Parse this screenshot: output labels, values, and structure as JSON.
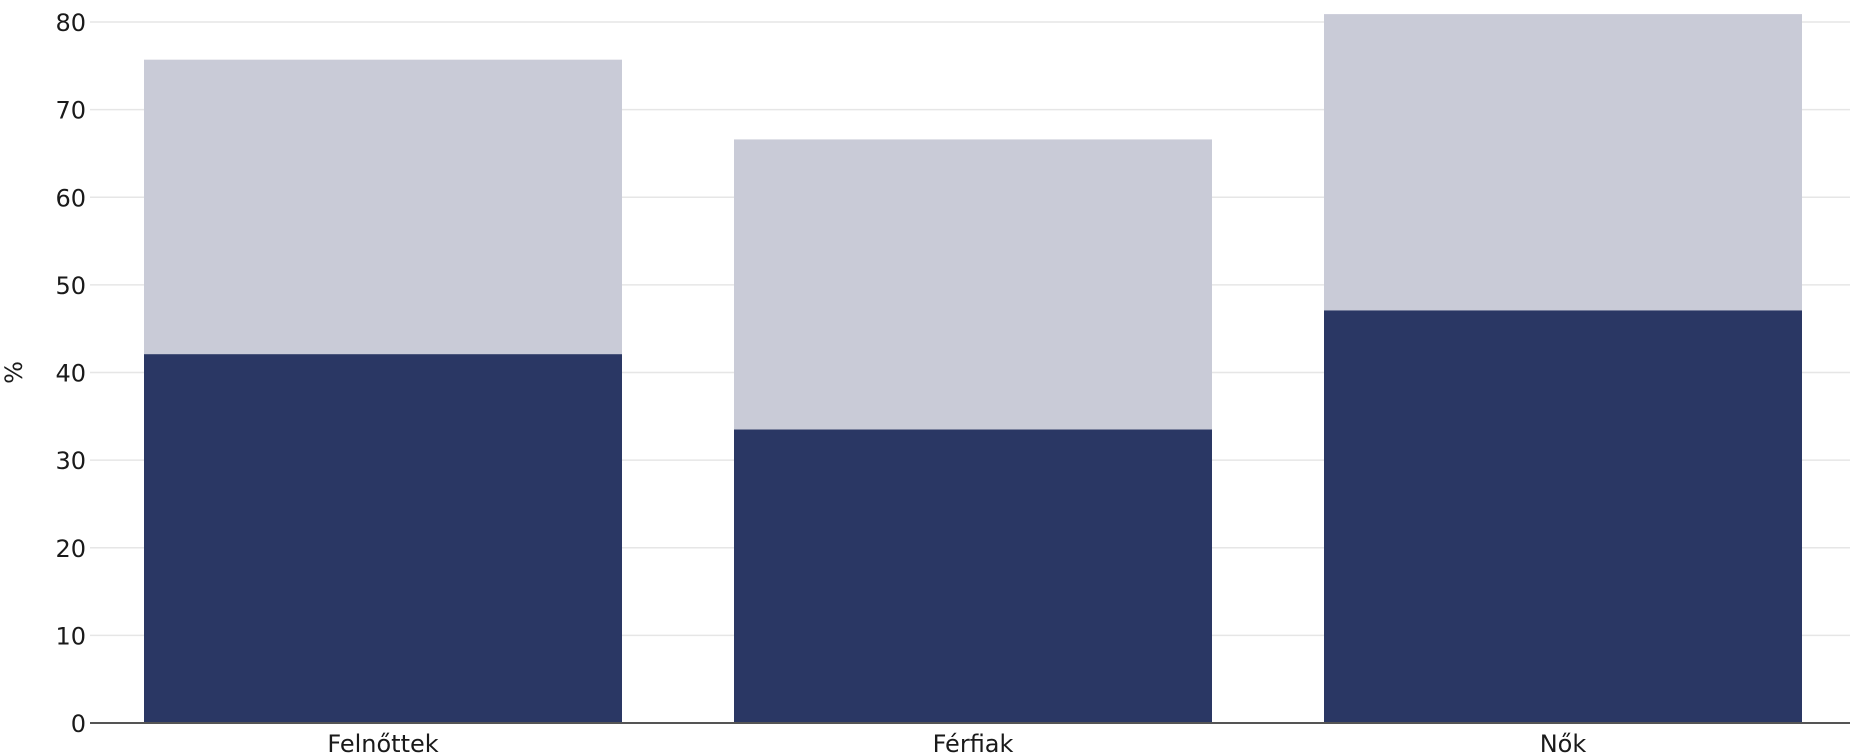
{
  "chart_data": {
    "type": "bar",
    "stacked": true,
    "categories": [
      "Felnőttek",
      "Férfiak",
      "Nők"
    ],
    "series": [
      {
        "values": [
          42.1,
          33.5,
          47.1
        ],
        "color": "#2a3764"
      },
      {
        "values": [
          33.6,
          33.1,
          33.8
        ],
        "color": "#c9cbd7"
      }
    ],
    "ylabel": "%",
    "xlabel": "",
    "title": "",
    "ylim": [
      0,
      80
    ],
    "yticks": [
      0,
      10,
      20,
      30,
      40,
      50,
      60,
      70,
      80
    ],
    "grid": true,
    "legend": "none"
  }
}
